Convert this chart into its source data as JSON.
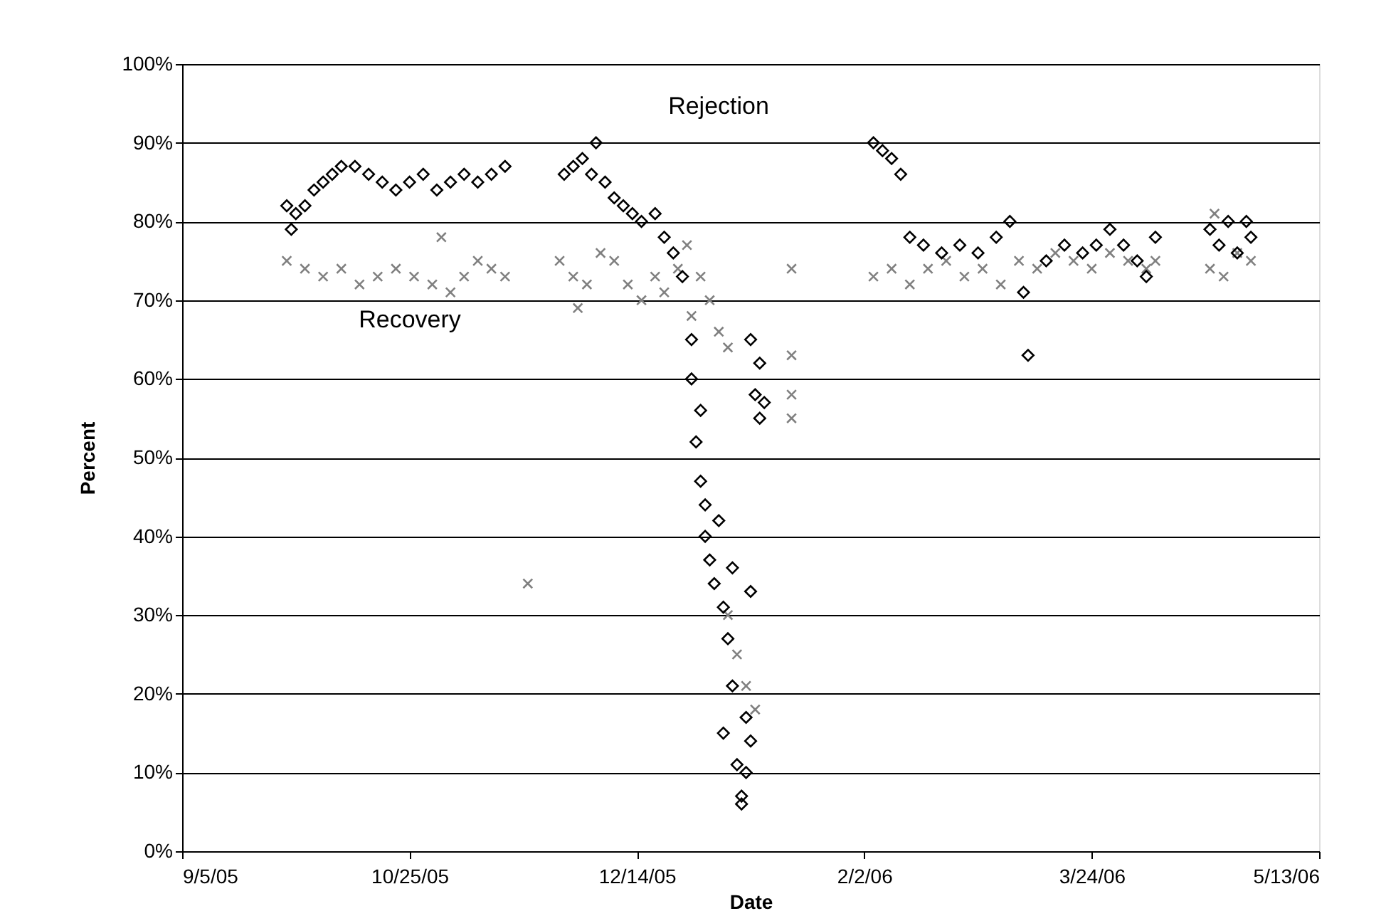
{
  "chart_data": {
    "type": "scatter",
    "xlabel": "Date",
    "ylabel": "Percent",
    "xlim": [
      "2005-09-05",
      "2006-05-13"
    ],
    "xticks": [
      {
        "value": "2005-09-05",
        "label": "9/5/05"
      },
      {
        "value": "2005-10-25",
        "label": "10/25/05"
      },
      {
        "value": "2005-12-14",
        "label": "12/14/05"
      },
      {
        "value": "2006-02-02",
        "label": "2/2/06"
      },
      {
        "value": "2006-03-24",
        "label": "3/24/06"
      },
      {
        "value": "2006-05-13",
        "label": "5/13/06"
      }
    ],
    "ylim": [
      0,
      100
    ],
    "yticks": [
      {
        "value": 0,
        "label": "0%"
      },
      {
        "value": 10,
        "label": "10%"
      },
      {
        "value": 20,
        "label": "20%"
      },
      {
        "value": 30,
        "label": "30%"
      },
      {
        "value": 40,
        "label": "40%"
      },
      {
        "value": 50,
        "label": "50%"
      },
      {
        "value": 60,
        "label": "60%"
      },
      {
        "value": 70,
        "label": "70%"
      },
      {
        "value": 80,
        "label": "80%"
      },
      {
        "value": 90,
        "label": "90%"
      },
      {
        "value": 100,
        "label": "100%"
      }
    ],
    "grid": "y",
    "series": [
      {
        "name": "Recovery",
        "color": "#808080",
        "marker": "cross",
        "x": [
          "2005-09-28",
          "2005-10-02",
          "2005-10-06",
          "2005-10-10",
          "2005-10-14",
          "2005-10-18",
          "2005-10-22",
          "2005-10-26",
          "2005-10-30",
          "2005-11-01",
          "2005-11-03",
          "2005-11-06",
          "2005-11-09",
          "2005-11-12",
          "2005-11-15",
          "2005-11-20",
          "2005-11-27",
          "2005-11-30",
          "2005-12-01",
          "2005-12-03",
          "2005-12-06",
          "2005-12-09",
          "2005-12-12",
          "2005-12-15",
          "2005-12-18",
          "2005-12-20",
          "2005-12-23",
          "2005-12-25",
          "2005-12-26",
          "2005-12-28",
          "2005-12-30",
          "2006-01-01",
          "2006-01-03",
          "2006-01-03",
          "2006-01-05",
          "2006-01-07",
          "2006-01-09",
          "2006-01-17",
          "2006-01-17",
          "2006-01-17",
          "2006-01-17",
          "2006-02-04",
          "2006-02-08",
          "2006-02-12",
          "2006-02-16",
          "2006-02-20",
          "2006-02-24",
          "2006-02-28",
          "2006-03-04",
          "2006-03-08",
          "2006-03-12",
          "2006-03-16",
          "2006-03-20",
          "2006-03-24",
          "2006-03-28",
          "2006-04-01",
          "2006-04-05",
          "2006-04-07",
          "2006-04-19",
          "2006-04-20",
          "2006-04-22",
          "2006-04-25",
          "2006-04-28"
        ],
        "values": [
          75,
          74,
          73,
          74,
          72,
          73,
          74,
          73,
          72,
          78,
          71,
          73,
          75,
          74,
          73,
          34,
          75,
          73,
          69,
          72,
          76,
          75,
          72,
          70,
          73,
          71,
          74,
          77,
          68,
          73,
          70,
          66,
          64,
          30,
          25,
          21,
          18,
          74,
          63,
          58,
          55,
          73,
          74,
          72,
          74,
          75,
          73,
          74,
          72,
          75,
          74,
          76,
          75,
          74,
          76,
          75,
          74,
          75,
          74,
          81,
          73,
          76,
          75
        ]
      },
      {
        "name": "Rejection",
        "color": "#000000",
        "marker": "diamond",
        "x": [
          "2005-09-28",
          "2005-09-29",
          "2005-09-30",
          "2005-10-02",
          "2005-10-04",
          "2005-10-06",
          "2005-10-08",
          "2005-10-10",
          "2005-10-13",
          "2005-10-16",
          "2005-10-19",
          "2005-10-22",
          "2005-10-25",
          "2005-10-28",
          "2005-10-31",
          "2005-11-03",
          "2005-11-06",
          "2005-11-09",
          "2005-11-12",
          "2005-11-15",
          "2005-11-28",
          "2005-11-30",
          "2005-12-02",
          "2005-12-04",
          "2005-12-05",
          "2005-12-07",
          "2005-12-09",
          "2005-12-11",
          "2005-12-13",
          "2005-12-15",
          "2005-12-18",
          "2005-12-20",
          "2005-12-22",
          "2005-12-24",
          "2005-12-26",
          "2005-12-26",
          "2005-12-27",
          "2005-12-28",
          "2005-12-28",
          "2005-12-29",
          "2005-12-29",
          "2005-12-30",
          "2005-12-31",
          "2006-01-01",
          "2006-01-02",
          "2006-01-02",
          "2006-01-03",
          "2006-01-04",
          "2006-01-04",
          "2006-01-05",
          "2006-01-06",
          "2006-01-06",
          "2006-01-07",
          "2006-01-07",
          "2006-01-08",
          "2006-01-08",
          "2006-01-09",
          "2006-01-10",
          "2006-01-10",
          "2006-01-11",
          "2006-01-08",
          "2006-02-04",
          "2006-02-06",
          "2006-02-08",
          "2006-02-10",
          "2006-02-12",
          "2006-02-15",
          "2006-02-19",
          "2006-02-23",
          "2006-02-27",
          "2006-03-03",
          "2006-03-06",
          "2006-03-09",
          "2006-03-10",
          "2006-03-14",
          "2006-03-18",
          "2006-03-22",
          "2006-03-25",
          "2006-03-28",
          "2006-03-31",
          "2006-04-03",
          "2006-04-05",
          "2006-04-07",
          "2006-04-19",
          "2006-04-21",
          "2006-04-23",
          "2006-04-25",
          "2006-04-27",
          "2006-04-28"
        ],
        "values": [
          82,
          79,
          81,
          82,
          84,
          85,
          86,
          87,
          87,
          86,
          85,
          84,
          85,
          86,
          84,
          85,
          86,
          85,
          86,
          87,
          86,
          87,
          88,
          86,
          90,
          85,
          83,
          82,
          81,
          80,
          81,
          78,
          76,
          73,
          65,
          60,
          52,
          56,
          47,
          44,
          40,
          37,
          34,
          42,
          31,
          15,
          27,
          36,
          21,
          11,
          6,
          7,
          10,
          17,
          14,
          33,
          58,
          62,
          55,
          57,
          65,
          90,
          89,
          88,
          86,
          78,
          77,
          76,
          77,
          76,
          78,
          80,
          71,
          63,
          75,
          77,
          76,
          77,
          79,
          77,
          75,
          73,
          78,
          79,
          77,
          80,
          76,
          80,
          78
        ]
      }
    ]
  }
}
